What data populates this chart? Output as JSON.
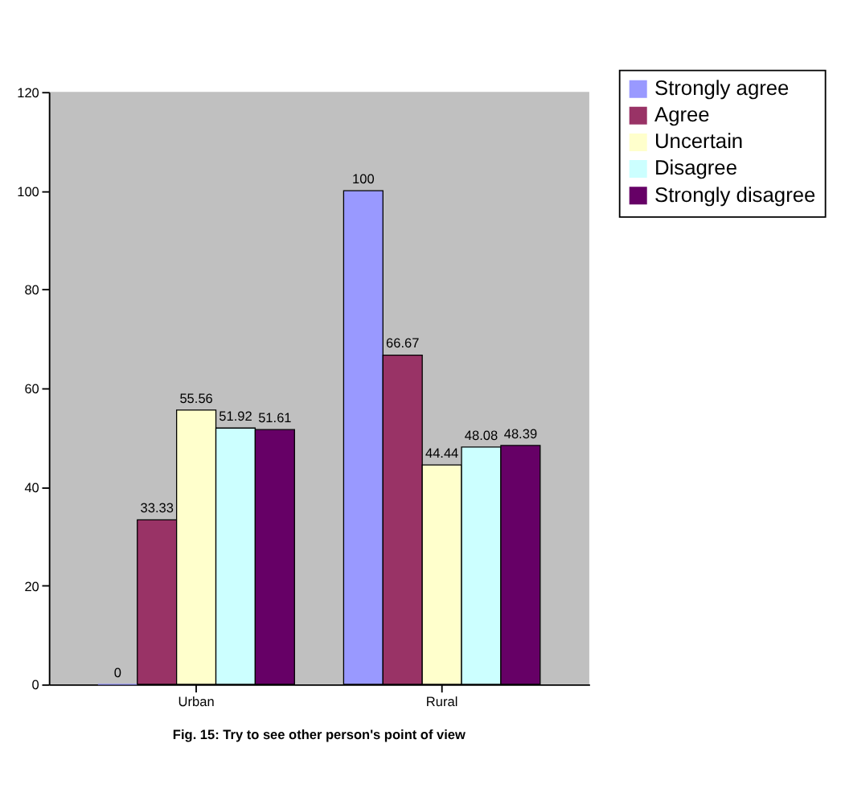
{
  "chart_data": {
    "type": "bar",
    "categories": [
      "Urban",
      "Rural"
    ],
    "series": [
      {
        "name": "Strongly agree",
        "color": "#9999ff",
        "values": [
          0,
          100
        ]
      },
      {
        "name": "Agree",
        "color": "#993366",
        "values": [
          33.33,
          66.67
        ]
      },
      {
        "name": "Uncertain",
        "color": "#ffffcc",
        "values": [
          55.56,
          44.44
        ]
      },
      {
        "name": "Disagree",
        "color": "#ccffff",
        "values": [
          51.92,
          48.08
        ]
      },
      {
        "name": "Strongly disagree",
        "color": "#660066",
        "values": [
          51.61,
          48.39
        ]
      }
    ],
    "ylim": [
      0,
      120
    ],
    "yticks": [
      0,
      20,
      40,
      60,
      80,
      100,
      120
    ],
    "grid": false,
    "legend": "top right",
    "data_labels": true,
    "annotations": [
      "Fig. 15: Try to see other person's point of view"
    ]
  }
}
